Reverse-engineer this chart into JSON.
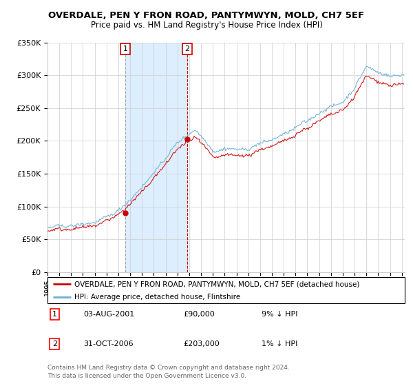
{
  "title": "OVERDALE, PEN Y FRON ROAD, PANTYMWYN, MOLD, CH7 5EF",
  "subtitle": "Price paid vs. HM Land Registry's House Price Index (HPI)",
  "legend_line1": "OVERDALE, PEN Y FRON ROAD, PANTYMWYN, MOLD, CH7 5EF (detached house)",
  "legend_line2": "HPI: Average price, detached house, Flintshire",
  "table_row1": [
    "1",
    "03-AUG-2001",
    "£90,000",
    "9% ↓ HPI"
  ],
  "table_row2": [
    "2",
    "31-OCT-2006",
    "£203,000",
    "1% ↓ HPI"
  ],
  "footer1": "Contains HM Land Registry data © Crown copyright and database right 2024.",
  "footer2": "This data is licensed under the Open Government Licence v3.0.",
  "ylim": [
    0,
    350000
  ],
  "yticks": [
    0,
    50000,
    100000,
    150000,
    200000,
    250000,
    300000,
    350000
  ],
  "ytick_labels": [
    "£0",
    "£50K",
    "£100K",
    "£150K",
    "£200K",
    "£250K",
    "£300K",
    "£350K"
  ],
  "hpi_color": "#6baed6",
  "price_color": "#cc0000",
  "shade_color": "#ddeeff",
  "purchase1_year": 2001.583,
  "purchase1_price": 90000,
  "purchase2_year": 2006.833,
  "purchase2_price": 203000,
  "shade_start": 2001.583,
  "shade_end": 2006.833,
  "xmin": 1995.0,
  "xmax": 2025.25
}
